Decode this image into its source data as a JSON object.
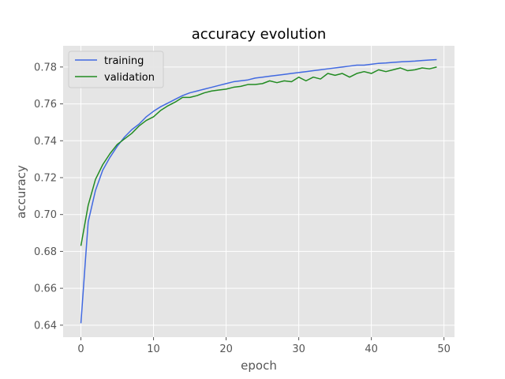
{
  "chart_data": {
    "type": "line",
    "title": "accuracy evolution",
    "xlabel": "epoch",
    "ylabel": "accuracy",
    "xlim": [
      -2.45,
      51.45
    ],
    "ylim": [
      0.6335,
      0.7915
    ],
    "xticks": [
      0,
      10,
      20,
      30,
      40,
      50
    ],
    "yticks": [
      0.64,
      0.66,
      0.68,
      0.7,
      0.72,
      0.74,
      0.76,
      0.78
    ],
    "grid": true,
    "legend_position": "top-left",
    "x": [
      0,
      1,
      2,
      3,
      4,
      5,
      6,
      7,
      8,
      9,
      10,
      11,
      12,
      13,
      14,
      15,
      16,
      17,
      18,
      19,
      20,
      21,
      22,
      23,
      24,
      25,
      26,
      27,
      28,
      29,
      30,
      31,
      32,
      33,
      34,
      35,
      36,
      37,
      38,
      39,
      40,
      41,
      42,
      43,
      44,
      45,
      46,
      47,
      48,
      49
    ],
    "series": [
      {
        "name": "training",
        "color": "#4169e1",
        "values": [
          0.641,
          0.696,
          0.713,
          0.724,
          0.731,
          0.737,
          0.742,
          0.746,
          0.749,
          0.753,
          0.756,
          0.7585,
          0.7605,
          0.7625,
          0.7645,
          0.766,
          0.767,
          0.768,
          0.769,
          0.77,
          0.771,
          0.772,
          0.7725,
          0.773,
          0.774,
          0.7745,
          0.775,
          0.7755,
          0.776,
          0.7765,
          0.777,
          0.7775,
          0.778,
          0.7785,
          0.779,
          0.7795,
          0.78,
          0.7805,
          0.781,
          0.781,
          0.7815,
          0.782,
          0.7822,
          0.7825,
          0.7828,
          0.783,
          0.7832,
          0.7835,
          0.7838,
          0.784
        ]
      },
      {
        "name": "validation",
        "color": "#228b22",
        "values": [
          0.683,
          0.705,
          0.719,
          0.727,
          0.733,
          0.738,
          0.741,
          0.744,
          0.748,
          0.751,
          0.753,
          0.7565,
          0.759,
          0.761,
          0.7635,
          0.7635,
          0.7645,
          0.766,
          0.767,
          0.7675,
          0.768,
          0.769,
          0.7695,
          0.7705,
          0.7705,
          0.771,
          0.7725,
          0.7715,
          0.7725,
          0.772,
          0.7745,
          0.7725,
          0.7745,
          0.7735,
          0.7765,
          0.7755,
          0.7765,
          0.7745,
          0.7765,
          0.7775,
          0.7765,
          0.7785,
          0.7775,
          0.7785,
          0.7795,
          0.778,
          0.7785,
          0.7795,
          0.779,
          0.78
        ]
      }
    ],
    "colors": {
      "plot_background": "#e5e5e5",
      "grid": "#ffffff",
      "text": "#555555"
    }
  }
}
